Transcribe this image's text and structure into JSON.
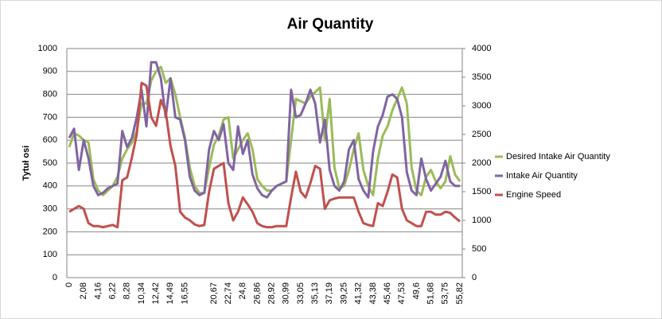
{
  "chart_data": {
    "type": "line",
    "title": "Air Quantity",
    "y_label": "Tytuł osi",
    "categories": [
      "0",
      null,
      null,
      "2,08",
      null,
      null,
      "4,16",
      null,
      null,
      "6,22",
      null,
      null,
      "8,28",
      null,
      null,
      "10,34",
      null,
      null,
      "12,42",
      null,
      null,
      "14,49",
      null,
      null,
      "16,55",
      null,
      null,
      null,
      null,
      null,
      "20,67",
      null,
      null,
      "22,74",
      null,
      null,
      "24,8",
      null,
      null,
      "26,86",
      null,
      null,
      "28,92",
      null,
      null,
      "30,99",
      null,
      null,
      "33,05",
      null,
      null,
      "35,13",
      null,
      null,
      "37,19",
      null,
      null,
      "39,25",
      null,
      null,
      "41,32",
      null,
      null,
      "43,38",
      null,
      null,
      "45,46",
      null,
      null,
      "47,53",
      null,
      null,
      "49,6",
      null,
      null,
      "51,68",
      null,
      null,
      "53,75",
      null,
      null,
      "55,82"
    ],
    "series": [
      {
        "name": "Desired Intake Air Quantity",
        "color": "#9bbb59",
        "values": [
          570,
          630,
          620,
          600,
          590,
          430,
          380,
          360,
          380,
          400,
          440,
          520,
          560,
          590,
          640,
          760,
          760,
          860,
          900,
          920,
          850,
          870,
          800,
          700,
          610,
          480,
          400,
          370,
          370,
          480,
          580,
          620,
          690,
          700,
          520,
          560,
          600,
          630,
          560,
          430,
          400,
          380,
          380,
          400,
          410,
          420,
          600,
          780,
          770,
          760,
          790,
          810,
          830,
          600,
          780,
          480,
          390,
          400,
          470,
          560,
          630,
          470,
          400,
          360,
          520,
          620,
          660,
          730,
          780,
          830,
          760,
          480,
          380,
          360,
          440,
          470,
          420,
          390,
          420,
          530,
          450,
          420
        ]
      },
      {
        "name": "Intake Air Quantity",
        "color": "#8064a2",
        "values": [
          610,
          650,
          470,
          600,
          520,
          400,
          360,
          370,
          390,
          400,
          410,
          640,
          570,
          610,
          700,
          820,
          660,
          940,
          940,
          870,
          700,
          870,
          700,
          690,
          600,
          440,
          380,
          360,
          370,
          560,
          640,
          600,
          670,
          500,
          470,
          660,
          540,
          600,
          450,
          390,
          360,
          350,
          380,
          400,
          410,
          420,
          820,
          700,
          710,
          760,
          820,
          760,
          590,
          690,
          470,
          400,
          380,
          420,
          560,
          600,
          430,
          380,
          350,
          550,
          660,
          710,
          790,
          800,
          780,
          700,
          460,
          380,
          360,
          520,
          430,
          380,
          410,
          440,
          510,
          420,
          400,
          400
        ]
      },
      {
        "name": "Engine Speed",
        "color": "#c0504d",
        "axis": "y2",
        "values": [
          1150,
          1200,
          1250,
          1200,
          950,
          900,
          900,
          880,
          900,
          920,
          880,
          1700,
          1750,
          2100,
          2500,
          3400,
          3350,
          2800,
          2650,
          3100,
          2900,
          2300,
          1950,
          1150,
          1050,
          1000,
          930,
          900,
          920,
          1500,
          1900,
          1950,
          2000,
          1300,
          1000,
          1150,
          1400,
          1280,
          1150,
          950,
          900,
          880,
          880,
          900,
          900,
          900,
          1400,
          1850,
          1500,
          1400,
          1650,
          1950,
          1900,
          1200,
          1350,
          1380,
          1400,
          1400,
          1400,
          1400,
          1150,
          950,
          920,
          900,
          1300,
          1250,
          1500,
          1800,
          1750,
          1200,
          1000,
          950,
          900,
          900,
          1150,
          1150,
          1100,
          1100,
          1150,
          1130,
          1050,
          980
        ]
      }
    ],
    "ylim": [
      0,
      1000
    ],
    "yticks": [
      0,
      100,
      200,
      300,
      400,
      500,
      600,
      700,
      800,
      900,
      1000
    ],
    "y2lim": [
      0,
      4000
    ],
    "y2ticks": [
      0,
      500,
      1000,
      1500,
      2000,
      2500,
      3000,
      3500,
      4000
    ],
    "grid": true,
    "legend": "right"
  }
}
